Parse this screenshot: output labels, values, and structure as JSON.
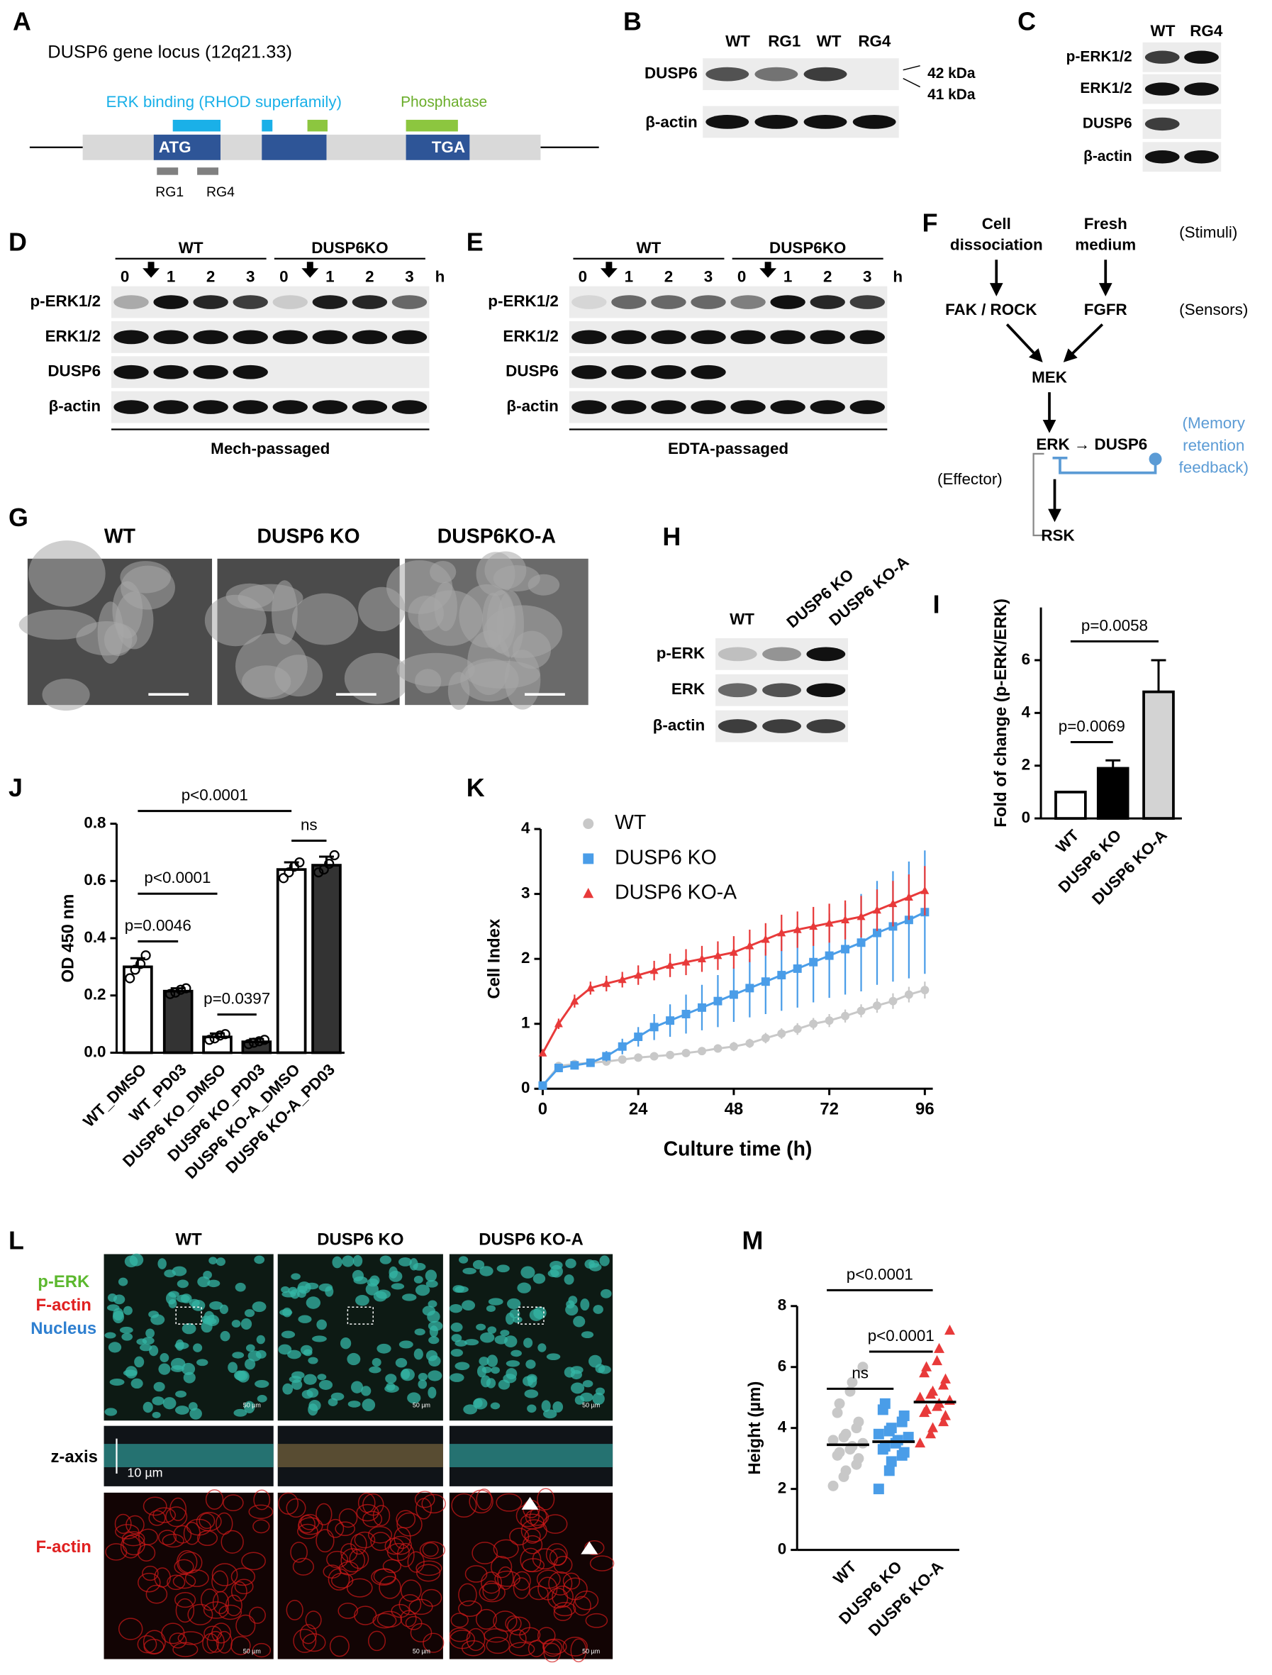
{
  "panel_labels": [
    "A",
    "B",
    "C",
    "D",
    "E",
    "F",
    "G",
    "H",
    "I",
    "J",
    "K",
    "L",
    "M"
  ],
  "gene_locus": {
    "title": "DUSP6 gene locus (12q21.33)",
    "erk_binding": "ERK binding (RHOD superfamily)",
    "phosphatase": "Phosphatase",
    "start_codon": "ATG",
    "stop_codon": "TGA",
    "guides": [
      "RG1",
      "RG4"
    ]
  },
  "blot_b": {
    "lanes": [
      "WT",
      "RG1",
      "WT",
      "RG4"
    ],
    "rows": [
      "DUSP6",
      "β-actin"
    ],
    "sizes": [
      "42 kDa",
      "41 kDa"
    ]
  },
  "blot_c": {
    "lanes": [
      "WT",
      "RG4"
    ],
    "rows": [
      "p-ERK1/2",
      "ERK1/2",
      "DUSP6",
      "β-actin"
    ]
  },
  "blot_d": {
    "groups": [
      "WT",
      "DUSP6KO"
    ],
    "times": [
      "0",
      "1",
      "2",
      "3",
      "0",
      "1",
      "2",
      "3"
    ],
    "unit": "h",
    "rows": [
      "p-ERK1/2",
      "ERK1/2",
      "DUSP6",
      "β-actin"
    ],
    "condition": "Mech-passaged"
  },
  "blot_e": {
    "groups": [
      "WT",
      "DUSP6KO"
    ],
    "times": [
      "0",
      "1",
      "2",
      "3",
      "0",
      "1",
      "2",
      "3"
    ],
    "unit": "h",
    "rows": [
      "p-ERK1/2",
      "ERK1/2",
      "DUSP6",
      "β-actin"
    ],
    "condition": "EDTA-passaged"
  },
  "pathway": {
    "stimuli": [
      [
        "Cell",
        "dissociation"
      ],
      [
        "Fresh",
        "medium"
      ]
    ],
    "stimuli_label": "(Stimuli)",
    "sensors": [
      "FAK / ROCK",
      "FGFR"
    ],
    "sensors_label": "(Sensors)",
    "kinase": "MEK",
    "effector_pair": "ERK → DUSP6",
    "feedback_label": [
      "(Memory",
      "retention",
      "feedback)"
    ],
    "effector_label": "(Effector)",
    "target": "RSK"
  },
  "images_g": {
    "labels": [
      "WT",
      "DUSP6 KO",
      "DUSP6KO-A"
    ]
  },
  "blot_h": {
    "lanes": [
      "WT",
      "DUSP6 KO",
      "DUSP6 KO-A"
    ],
    "rows": [
      "p-ERK",
      "ERK",
      "β-actin"
    ]
  },
  "images_l": {
    "columns": [
      "WT",
      "DUSP6 KO",
      "DUSP6 KO-A"
    ],
    "channels": [
      "p-ERK",
      "F-actin",
      "Nucleus"
    ],
    "z_label": "z-axis",
    "z_scale": "10 µm",
    "bottom_label": "F-actin",
    "scale_bar": "50 µm"
  },
  "chart_data": [
    {
      "type": "bar",
      "y_label": "Fold of change (p-ERK/ERK)",
      "categories": [
        "WT",
        "DUSP6 KO",
        "DUSP6 KO-A"
      ],
      "values": [
        1,
        1.9,
        4.8
      ],
      "errors": [
        0,
        0.3,
        1.2
      ],
      "colors": [
        "#ffffff",
        "#000000",
        "#d3d3d3"
      ],
      "ylim": [
        0,
        8
      ],
      "yticks": [
        0,
        2,
        4,
        6
      ],
      "annotations": [
        "p=0.0069",
        "p=0.0058"
      ]
    },
    {
      "type": "bar",
      "y_label": "OD 450 nm",
      "categories": [
        "WT_DMSO",
        "WT_PD03",
        "DUSP6 KO_DMSO",
        "DUSP6 KO_PD03",
        "DUSP6 KO-A_DMSO",
        "DUSP6 KO-A_PD03"
      ],
      "values": [
        0.3,
        0.215,
        0.055,
        0.038,
        0.64,
        0.655
      ],
      "errors": [
        0.03,
        0.01,
        0.012,
        0.01,
        0.025,
        0.03
      ],
      "colors": [
        "#ffffff",
        "#333333",
        "#ffffff",
        "#333333",
        "#ffffff",
        "#333333"
      ],
      "points": [
        [
          0.26,
          0.29,
          0.31,
          0.34
        ],
        [
          0.205,
          0.21,
          0.22,
          0.225
        ],
        [
          0.045,
          0.05,
          0.06,
          0.065
        ],
        [
          0.03,
          0.035,
          0.04,
          0.045
        ],
        [
          0.61,
          0.63,
          0.65,
          0.665
        ],
        [
          0.63,
          0.64,
          0.66,
          0.69
        ]
      ],
      "ylim": [
        0,
        0.8
      ],
      "yticks": [
        {
          "value": 0,
          "label": "0.0"
        },
        0.2,
        0.4,
        0.6,
        0.8
      ],
      "annotations": [
        "p<0.0001",
        "p<0.0001",
        "p=0.0046",
        "p=0.0397",
        "ns"
      ]
    },
    {
      "type": "line",
      "x_label": "Culture time (h)",
      "y_label": "Cell Index",
      "x": [
        0,
        4,
        8,
        12,
        16,
        20,
        24,
        28,
        32,
        36,
        40,
        44,
        48,
        52,
        56,
        60,
        64,
        68,
        72,
        76,
        80,
        84,
        88,
        92,
        96
      ],
      "xlim": [
        0,
        98
      ],
      "ylim": [
        0,
        4
      ],
      "xticks": [
        0,
        24,
        48,
        72,
        96
      ],
      "yticks": [
        0,
        1,
        2,
        3,
        4
      ],
      "series": [
        {
          "name": "WT",
          "color": "#c8c8c8",
          "marker": "circle",
          "values": [
            0.05,
            0.35,
            0.38,
            0.4,
            0.42,
            0.45,
            0.48,
            0.5,
            0.52,
            0.55,
            0.58,
            0.62,
            0.65,
            0.7,
            0.78,
            0.85,
            0.92,
            1.0,
            1.05,
            1.12,
            1.2,
            1.28,
            1.35,
            1.45,
            1.52
          ],
          "errors": [
            0,
            0.03,
            0.03,
            0.03,
            0.04,
            0.04,
            0.05,
            0.05,
            0.05,
            0.06,
            0.06,
            0.06,
            0.07,
            0.07,
            0.08,
            0.08,
            0.09,
            0.09,
            0.1,
            0.1,
            0.1,
            0.11,
            0.12,
            0.12,
            0.13
          ]
        },
        {
          "name": "DUSP6 KO",
          "color": "#4a9de8",
          "marker": "square",
          "values": [
            0.05,
            0.32,
            0.36,
            0.4,
            0.5,
            0.65,
            0.8,
            0.95,
            1.05,
            1.15,
            1.25,
            1.35,
            1.45,
            1.55,
            1.65,
            1.75,
            1.85,
            1.95,
            2.05,
            2.15,
            2.25,
            2.4,
            2.5,
            2.6,
            2.72
          ],
          "errors": [
            0,
            0.03,
            0.04,
            0.05,
            0.08,
            0.12,
            0.15,
            0.2,
            0.25,
            0.3,
            0.35,
            0.4,
            0.42,
            0.45,
            0.5,
            0.55,
            0.6,
            0.62,
            0.65,
            0.7,
            0.75,
            0.8,
            0.85,
            0.9,
            0.95
          ]
        },
        {
          "name": "DUSP6 KO-A",
          "color": "#e83a3a",
          "marker": "triangle",
          "values": [
            0.55,
            1.0,
            1.35,
            1.55,
            1.62,
            1.68,
            1.75,
            1.82,
            1.9,
            1.95,
            2.0,
            2.05,
            2.1,
            2.2,
            2.3,
            2.4,
            2.45,
            2.5,
            2.55,
            2.6,
            2.65,
            2.75,
            2.85,
            2.95,
            3.05
          ],
          "errors": [
            0.05,
            0.08,
            0.1,
            0.1,
            0.12,
            0.12,
            0.15,
            0.15,
            0.18,
            0.2,
            0.2,
            0.22,
            0.25,
            0.25,
            0.25,
            0.28,
            0.28,
            0.3,
            0.3,
            0.3,
            0.32,
            0.32,
            0.35,
            0.35,
            0.38
          ]
        }
      ]
    },
    {
      "type": "dot",
      "y_label": "Height (µm)",
      "categories": [
        "WT",
        "DUSP6 KO",
        "DUSP6 KO-A"
      ],
      "values": [
        3.45,
        3.55,
        4.85
      ],
      "colors": [
        "#c8c8c8",
        "#4a9de8",
        "#e83a3a"
      ],
      "markers": [
        "circle",
        "square",
        "triangle"
      ],
      "points": [
        [
          2.1,
          2.4,
          2.6,
          2.8,
          3.0,
          3.1,
          3.2,
          3.3,
          3.4,
          3.5,
          3.6,
          3.7,
          3.8,
          4.0,
          4.2,
          4.5,
          4.8,
          5.2,
          5.5,
          6.0
        ],
        [
          2.0,
          2.6,
          2.9,
          3.1,
          3.2,
          3.3,
          3.4,
          3.5,
          3.6,
          3.7,
          3.8,
          3.9,
          4.0,
          4.2,
          4.4,
          4.6,
          4.8
        ],
        [
          3.5,
          3.8,
          4.0,
          4.2,
          4.4,
          4.5,
          4.6,
          4.7,
          4.8,
          4.9,
          5.0,
          5.1,
          5.2,
          5.4,
          5.6,
          5.8,
          6.0,
          6.2,
          6.6,
          7.2
        ]
      ],
      "ylim": [
        0,
        8
      ],
      "yticks": [
        0,
        2,
        4,
        6,
        8
      ],
      "annotations": [
        "p<0.0001",
        "p<0.0001",
        "ns"
      ]
    }
  ]
}
